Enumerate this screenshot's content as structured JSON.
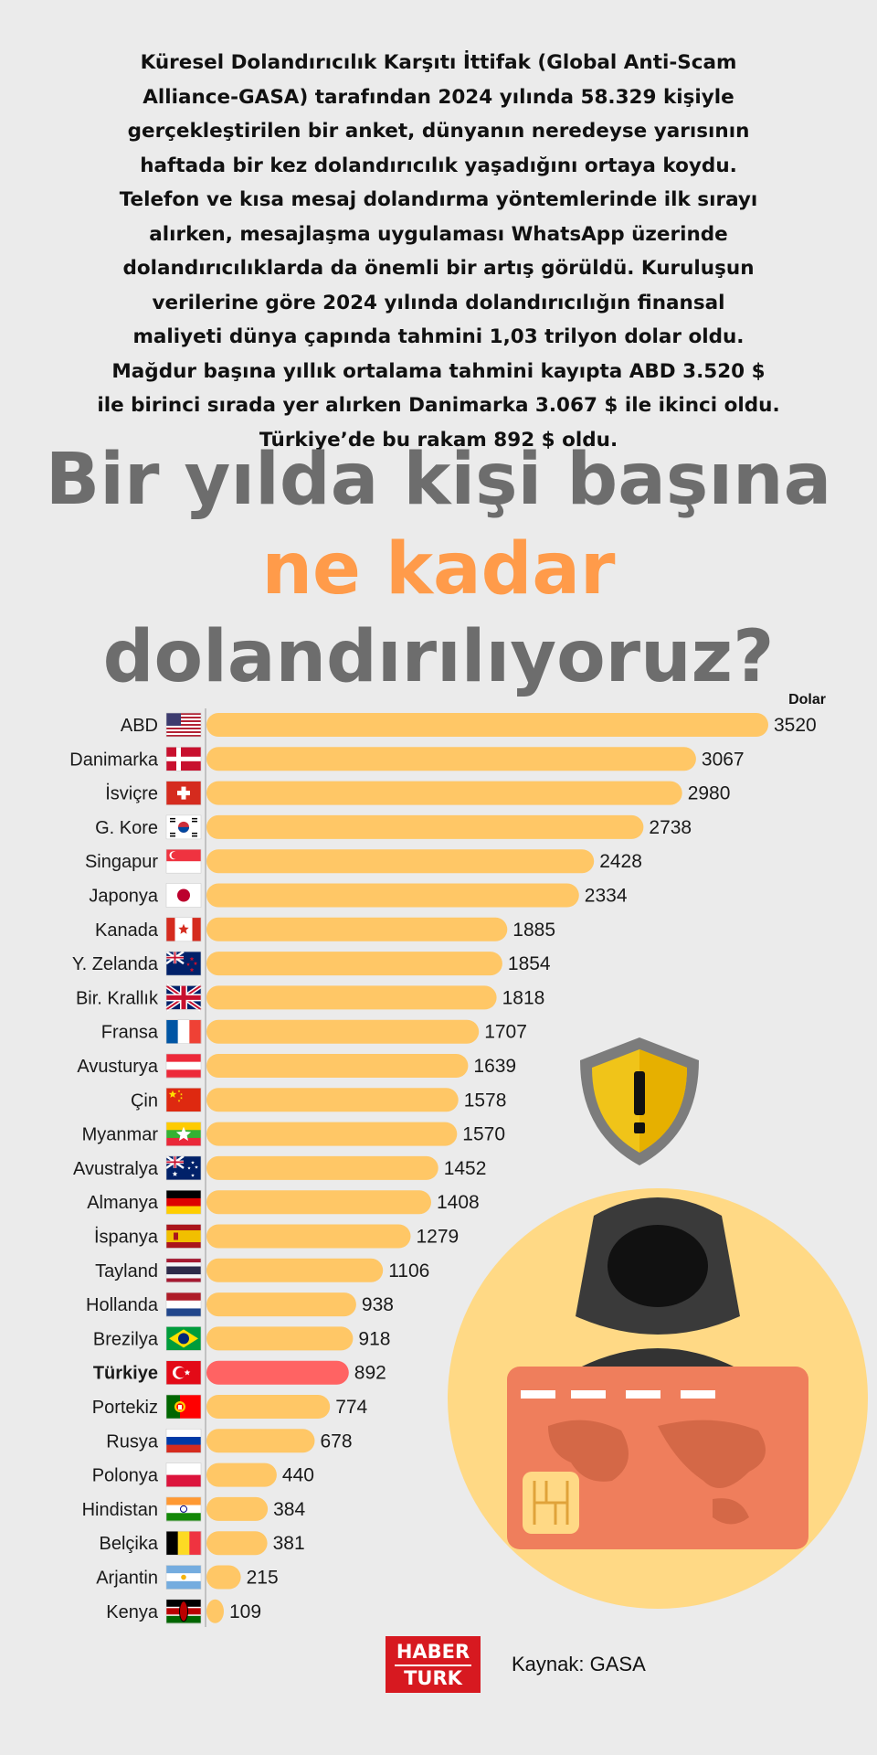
{
  "intro": {
    "lines": [
      "Küresel Dolandırıcılık Karşıtı İttifak (Global Anti-Scam",
      "Alliance-GASA) tarafından 2024 yılında 58.329 kişiyle",
      "gerçekleştirilen bir anket, dünyanın neredeyse yarısının",
      "haftada bir kez dolandırıcılık yaşadığını ortaya koydu.",
      "Telefon ve kısa mesaj dolandırma yöntemlerinde ilk sırayı",
      "alırken, mesajlaşma uygulaması WhatsApp üzerinde",
      "dolandırıcılıklarda da önemli bir artış görüldü. Kuruluşun",
      "verilerine göre 2024 yılında  dolandırıcılığın finansal",
      "maliyeti dünya çapında tahmini 1,03 trilyon dolar oldu.",
      "Mağdur başına yıllık ortalama tahmini kayıpta ABD 3.520 $",
      "ile birinci sırada yer alırken Danimarka 3.067 $ ile ikinci oldu.",
      "Türkiye’de bu rakam 892 $ oldu."
    ]
  },
  "headline": {
    "line1": "Bir yılda kişi başına",
    "line2": "ne kadar",
    "line3": "dolandırılıyoruz?"
  },
  "colors": {
    "title_gray": "#6d6d6d",
    "title_orange": "#ff9b4a",
    "bar": "#ffc766",
    "highlight_bar": "#ff6363",
    "card": "#ef7e5c",
    "circle": "#ffd985",
    "shield": "#f0c419"
  },
  "chart_data": {
    "type": "bar",
    "orientation": "horizontal",
    "unit_label": "Dolar",
    "highlight": "Türkiye",
    "categories": [
      "ABD",
      "Danimarka",
      "İsviçre",
      "G. Kore",
      "Singapur",
      "Japonya",
      "Kanada",
      "Y. Zelanda",
      "Bir. Krallık",
      "Fransa",
      "Avusturya",
      "Çin",
      "Myanmar",
      "Avustralya",
      "Almanya",
      "İspanya",
      "Tayland",
      "Hollanda",
      "Brezilya",
      "Türkiye",
      "Portekiz",
      "Rusya",
      "Polonya",
      "Hindistan",
      "Belçika",
      "Arjantin",
      "Kenya"
    ],
    "values": [
      3520,
      3067,
      2980,
      2738,
      2428,
      2334,
      1885,
      1854,
      1818,
      1707,
      1639,
      1578,
      1570,
      1452,
      1408,
      1279,
      1106,
      938,
      918,
      892,
      774,
      678,
      440,
      384,
      381,
      215,
      109
    ],
    "flags": [
      "us",
      "dk",
      "ch",
      "kr",
      "sg",
      "jp",
      "ca",
      "nz",
      "gb",
      "fr",
      "at",
      "cn",
      "mm",
      "au",
      "de",
      "es",
      "th",
      "nl",
      "br",
      "tr",
      "pt",
      "ru",
      "pl",
      "in",
      "be",
      "ar",
      "ke"
    ]
  },
  "footer": {
    "logo_line1": "HABER",
    "logo_line2": "TURK",
    "source": "Kaynak: GASA"
  }
}
